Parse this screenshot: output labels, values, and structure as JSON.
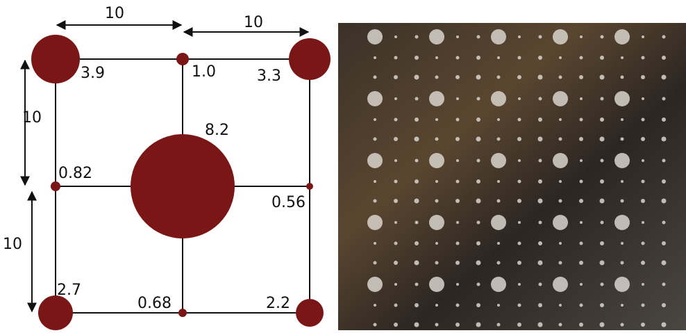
{
  "dimensions": [
    {
      "label": "10"
    },
    {
      "label": "10"
    },
    {
      "label": "10"
    },
    {
      "label": "10"
    }
  ],
  "nodes": [
    {
      "label": "3.9"
    },
    {
      "label": "1.0"
    },
    {
      "label": "3.3"
    },
    {
      "label": "0.82"
    },
    {
      "label": "8.2"
    },
    {
      "label": "0.56"
    },
    {
      "label": "2.7"
    },
    {
      "label": "0.68"
    },
    {
      "label": "2.2"
    }
  ]
}
